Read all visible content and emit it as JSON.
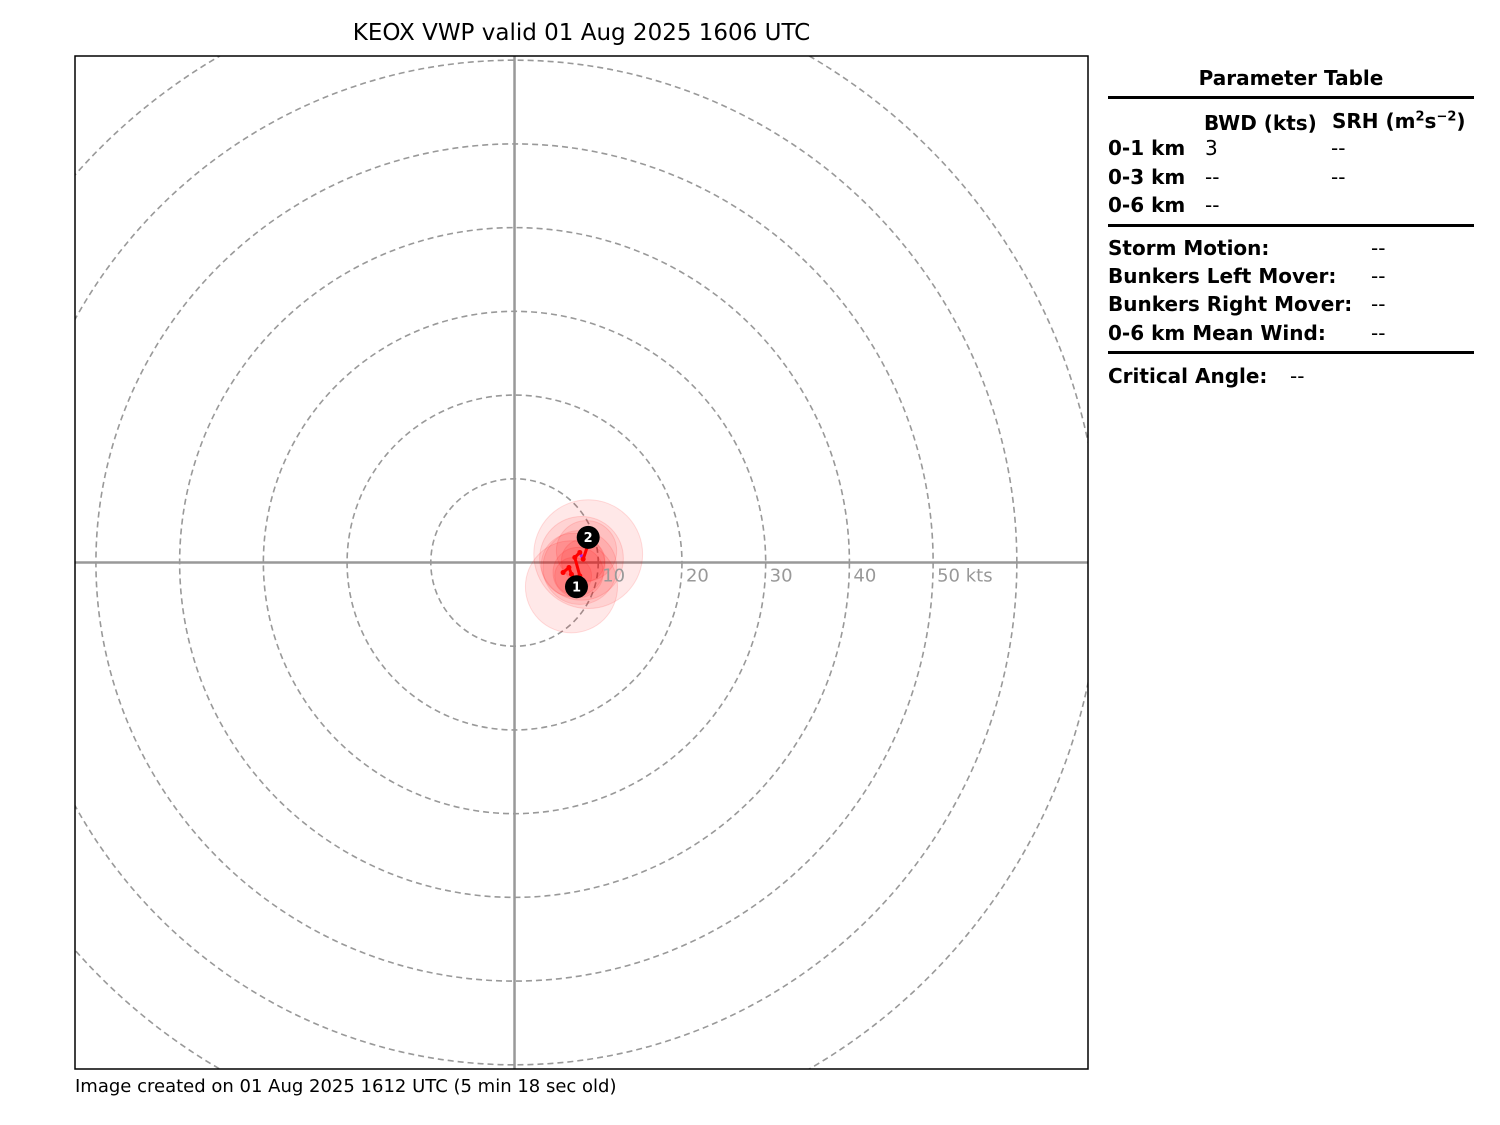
{
  "chart_data": {
    "type": "hodograph",
    "title": "KEOX VWP valid 01 Aug 2025 1606 UTC",
    "units": "kts",
    "ring_step": 10,
    "ring_count": 7,
    "ring_labels": [
      "10",
      "20",
      "30",
      "40",
      "50 kts"
    ],
    "xlim": [
      -52.5,
      68.5
    ],
    "ylim": [
      -60.5,
      60.5
    ],
    "grid": true,
    "hodograph_points": [
      {
        "u": 5.8,
        "v": -1.2
      },
      {
        "u": 6.5,
        "v": -0.6
      },
      {
        "u": 6.8,
        "v": -1.4
      },
      {
        "u": 7.2,
        "v": -2.0
      },
      {
        "u": 7.8,
        "v": -1.6
      },
      {
        "u": 7.2,
        "v": 0.6
      },
      {
        "u": 7.8,
        "v": 1.2
      },
      {
        "u": 8.2,
        "v": 0.4
      },
      {
        "u": 8.8,
        "v": 2.2
      }
    ],
    "height_markers": [
      {
        "label": "1",
        "u": 7.4,
        "v": -2.9
      },
      {
        "label": "2",
        "u": 8.8,
        "v": 3.0
      }
    ],
    "uncertainty_circles": [
      {
        "u": 6.8,
        "v": -2.9,
        "r": 5.5
      },
      {
        "u": 8.8,
        "v": 1.0,
        "r": 6.5
      },
      {
        "u": 8.0,
        "v": 0.5,
        "r": 5.0
      },
      {
        "u": 7.8,
        "v": -0.6,
        "r": 4.4
      },
      {
        "u": 7.0,
        "v": -0.3,
        "r": 3.8
      },
      {
        "u": 8.6,
        "v": 1.4,
        "r": 3.6
      },
      {
        "u": 7.6,
        "v": -1.2,
        "r": 3.0
      },
      {
        "u": 8.2,
        "v": 0.2,
        "r": 2.6
      },
      {
        "u": 7.0,
        "v": -1.6,
        "r": 2.2
      }
    ],
    "colors": {
      "trace": "#ff0000",
      "top": "#a020f0",
      "ring": "#999999",
      "axis": "#999999",
      "marker": "#000000"
    }
  },
  "parameter_table": {
    "title": "Parameter Table",
    "col_bwd": "BWD (kts)",
    "col_srh": "SRH (m",
    "col_srh_sup1": "2",
    "col_srh_mid": "s",
    "col_srh_sup2": "−2",
    "col_srh_end": ")",
    "rows": [
      {
        "layer": "0-1 km",
        "bwd": "3",
        "srh": "--"
      },
      {
        "layer": "0-3 km",
        "bwd": "--",
        "srh": "--"
      },
      {
        "layer": "0-6 km",
        "bwd": "--"
      }
    ],
    "motion": [
      {
        "label": "Storm Motion:",
        "value": "--"
      },
      {
        "label": "Bunkers Left Mover:",
        "value": "--"
      },
      {
        "label": "Bunkers Right Mover:",
        "value": "--"
      },
      {
        "label": "0-6 km Mean Wind:",
        "value": "--"
      }
    ],
    "critical_label": "Critical Angle:",
    "critical_value": "--"
  },
  "footer": "Image created on 01 Aug 2025 1612 UTC (5 min 18 sec old)"
}
